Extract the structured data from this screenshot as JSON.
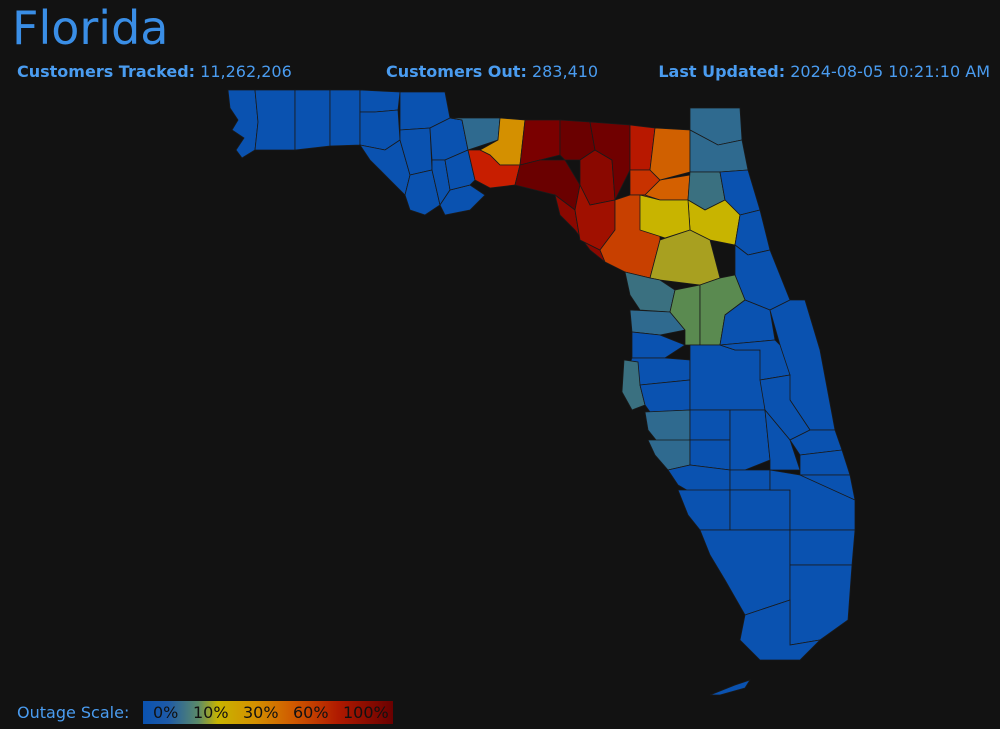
{
  "header": {
    "title": "Florida",
    "customers_tracked_label": "Customers Tracked:",
    "customers_tracked_value": "11,262,206",
    "customers_out_label": "Customers Out:",
    "customers_out_value": "283,410",
    "last_updated_label": "Last Updated:",
    "last_updated_value": "2024-08-05 10:21:10 AM"
  },
  "scale": {
    "label": "Outage Scale:",
    "ticks": [
      "0%",
      "10%",
      "30%",
      "60%",
      "100%"
    ],
    "colors": {
      "0": "#0a52b0",
      "low": "#2f6a8f",
      "mid_green": "#5a8a50",
      "10": "#c8b400",
      "30": "#d48a00",
      "60": "#c83200",
      "100": "#6a0000"
    }
  },
  "colors": {
    "background": "#121212",
    "accent": "#3a8ee6",
    "text": "#4a9cf0"
  }
}
